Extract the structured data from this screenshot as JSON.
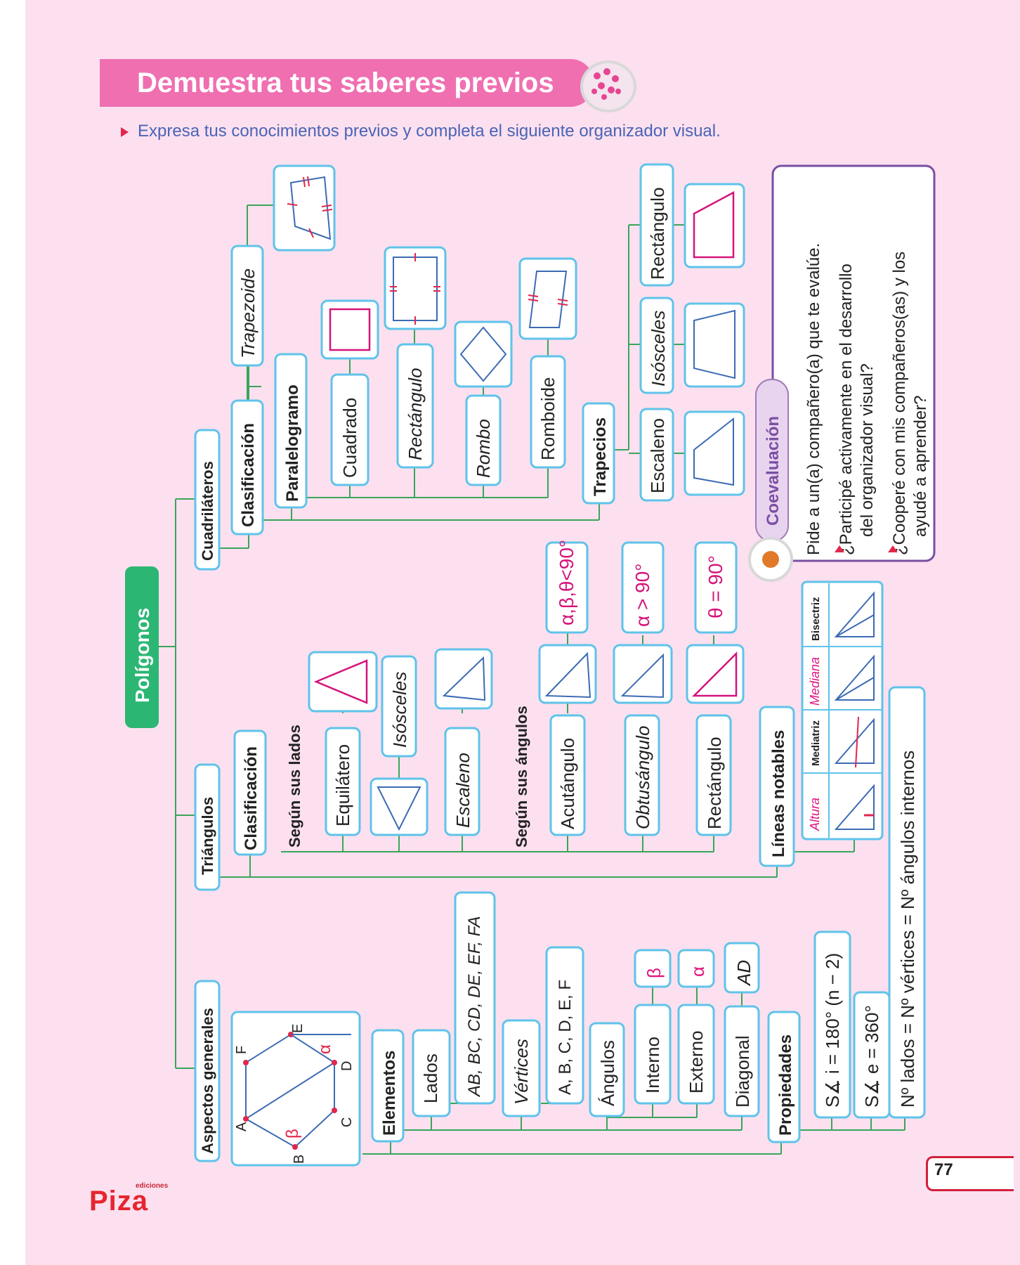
{
  "header": {
    "title": "Demuestra tus saberes previos",
    "instruction": "Expresa tus conocimientos previos y completa el siguiente organizador visual."
  },
  "map": {
    "root": "Polígonos",
    "cuadrilateros": {
      "title": "Cuadriláteros",
      "clasificacion": "Clasificación",
      "trapezoide": "Trapezoide",
      "paralelogramo": "Paralelogramo",
      "cuadrado": "Cuadrado",
      "rectangulo": "Rectángulo",
      "rombo": "Rombo",
      "romboide": "Romboide",
      "trapecios": "Trapecios",
      "escaleno": "Escaleno",
      "isosceles": "Isósceles",
      "rectangulo_trapecio": "Rectángulo"
    },
    "triangulos": {
      "title": "Triángulos",
      "clasificacion": "Clasificación",
      "segun_lados": "Según sus lados",
      "equilatero": "Equilátero",
      "isosceles": "Isósceles",
      "escaleno": "Escaleno",
      "segun_angulos": "Según sus ángulos",
      "acutangulo": "Acutángulo",
      "obtusangulo": "Obtusángulo",
      "rectangulo": "Rectángulo",
      "acut_prop": "α,β,θ<90°",
      "obtus_prop": "α > 90°",
      "rect_prop": "θ = 90°",
      "lineas_notables": "Líneas notables",
      "lineas": [
        "Altura",
        "Mediatriz",
        "Mediana",
        "Bisectriz"
      ]
    },
    "generales": {
      "title": "Aspectos generales",
      "hexagon_labels": [
        "A",
        "B",
        "C",
        "D",
        "E",
        "F",
        "α",
        "β"
      ],
      "elementos": "Elementos",
      "lados": "Lados",
      "lados_value": "AB, BC, CD, DE, EF, FA",
      "vertices": "Vértices",
      "vertices_value": "A, B, C, D, E, F",
      "angulos": "Ángulos",
      "interno": "Interno",
      "interno_value": "β",
      "externo": "Externo",
      "externo_value": "α",
      "diagonal": "Diagonal",
      "diagonal_value": "AD",
      "propiedades": "Propiedades",
      "prop_internos": "S∡ i = 180° (n − 2)",
      "prop_externos": "S∡ e = 360°",
      "prop_lados": "Nº lados = Nº vértices = Nº ángulos internos"
    },
    "coevaluacion": {
      "title": "Coevaluación",
      "intro": "Pide a un(a) compañero(a) que te evalúe.",
      "q1_line1": "¿Participé activamente en el desarrollo",
      "q1_line2": "del organizador visual?",
      "q2_line1": "¿Cooperé con mis compañeros(as) y los",
      "q2_line2": "ayudé a aprender?"
    }
  },
  "footer": {
    "logo": "Piza",
    "logo_small": "ediciones",
    "page_number": "77"
  },
  "colors": {
    "page_bg": "#fce0ef",
    "title_bar": "#ef6fb1",
    "connector": "#3aa55a",
    "box_border": "#5fc3ea",
    "root_box": "#2bb673",
    "pink_text": "#e0157f",
    "purple": "#7a4fa3"
  }
}
